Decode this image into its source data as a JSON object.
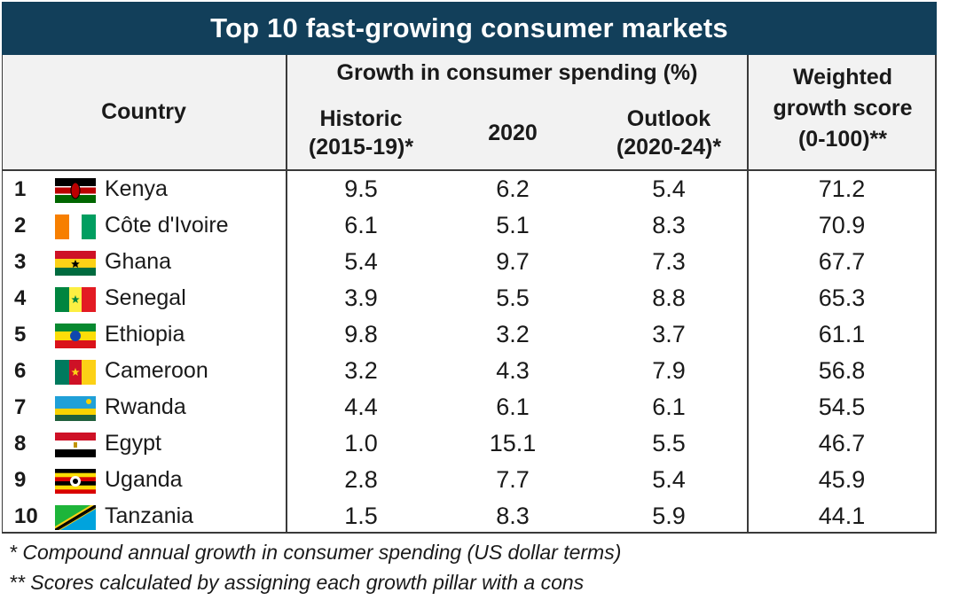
{
  "title": "Top 10 fast-growing consumer markets",
  "chart_data": {
    "type": "table",
    "title": "Top 10 fast-growing consumer markets",
    "headers": {
      "country": "Country",
      "group": "Growth in consumer spending (%)",
      "historic": [
        "Historic",
        "(2015-19)*"
      ],
      "y2020": "2020",
      "outlook": [
        "Outlook",
        "(2020-24)*"
      ],
      "score": [
        "Weighted",
        "growth score",
        "(0-100)**"
      ]
    },
    "rows": [
      {
        "rank": "1",
        "country": "Kenya",
        "flag": "kenya-flag-icon",
        "historic": "9.5",
        "y2020": "6.2",
        "outlook": "5.4",
        "score": "71.2"
      },
      {
        "rank": "2",
        "country": "Côte d'Ivoire",
        "flag": "cote-divoire-flag-icon",
        "historic": "6.1",
        "y2020": "5.1",
        "outlook": "8.3",
        "score": "70.9"
      },
      {
        "rank": "3",
        "country": "Ghana",
        "flag": "ghana-flag-icon",
        "historic": "5.4",
        "y2020": "9.7",
        "outlook": "7.3",
        "score": "67.7"
      },
      {
        "rank": "4",
        "country": "Senegal",
        "flag": "senegal-flag-icon",
        "historic": "3.9",
        "y2020": "5.5",
        "outlook": "8.8",
        "score": "65.3"
      },
      {
        "rank": "5",
        "country": "Ethiopia",
        "flag": "ethiopia-flag-icon",
        "historic": "9.8",
        "y2020": "3.2",
        "outlook": "3.7",
        "score": "61.1"
      },
      {
        "rank": "6",
        "country": "Cameroon",
        "flag": "cameroon-flag-icon",
        "historic": "3.2",
        "y2020": "4.3",
        "outlook": "7.9",
        "score": "56.8"
      },
      {
        "rank": "7",
        "country": "Rwanda",
        "flag": "rwanda-flag-icon",
        "historic": "4.4",
        "y2020": "6.1",
        "outlook": "6.1",
        "score": "54.5"
      },
      {
        "rank": "8",
        "country": "Egypt",
        "flag": "egypt-flag-icon",
        "historic": "1.0",
        "y2020": "15.1",
        "outlook": "5.5",
        "score": "46.7"
      },
      {
        "rank": "9",
        "country": "Uganda",
        "flag": "uganda-flag-icon",
        "historic": "2.8",
        "y2020": "7.7",
        "outlook": "5.4",
        "score": "45.9"
      },
      {
        "rank": "10",
        "country": "Tanzania",
        "flag": "tanzania-flag-icon",
        "historic": "1.5",
        "y2020": "8.3",
        "outlook": "5.9",
        "score": "44.1"
      }
    ]
  },
  "footnotes": [
    "* Compound annual growth in consumer spending (US dollar terms)",
    "** Scores calculated by assigning each growth pillar with a cons"
  ],
  "colors": {
    "title_bg": "#123f5a",
    "header_bg": "#f2f2f2",
    "border": "#3a3a3a"
  }
}
